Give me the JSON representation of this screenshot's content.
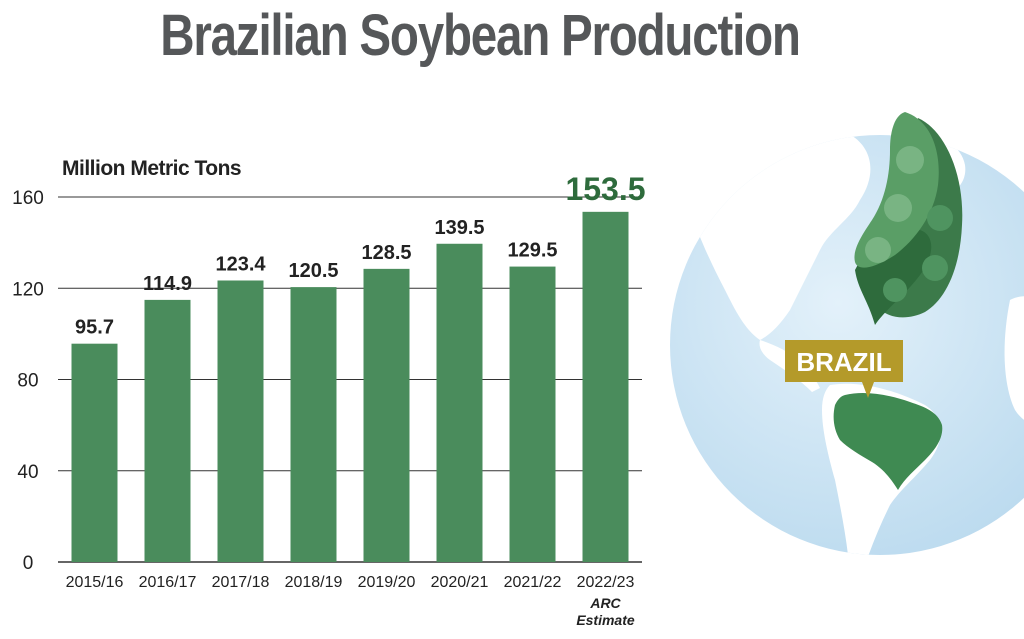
{
  "title": "Brazilian Soybean Production",
  "chart_data": {
    "type": "bar",
    "ylabel": "Million Metric Tons",
    "ylim": [
      0,
      160
    ],
    "yticks": [
      0,
      40,
      80,
      120,
      160
    ],
    "grid": true,
    "categories": [
      "2015/16",
      "2016/17",
      "2017/18",
      "2018/19",
      "2019/20",
      "2020/21",
      "2021/22",
      "2022/23"
    ],
    "values": [
      95.7,
      114.9,
      123.4,
      120.5,
      128.5,
      139.5,
      129.5,
      153.5
    ],
    "value_labels": [
      "95.7",
      "114.9",
      "123.4",
      "120.5",
      "128.5",
      "139.5",
      "129.5",
      "153.5"
    ],
    "last_category_note": [
      "ARC",
      "Estimate"
    ],
    "bar_color": "#4a8c5c",
    "highlight_label_color": "#2e6b3c"
  },
  "map": {
    "country_label": "BRAZIL",
    "label_color": "#b49a2a",
    "ocean_color": "#cfe6f5",
    "land_color": "#ffffff",
    "country_color": "#3f8a52"
  }
}
